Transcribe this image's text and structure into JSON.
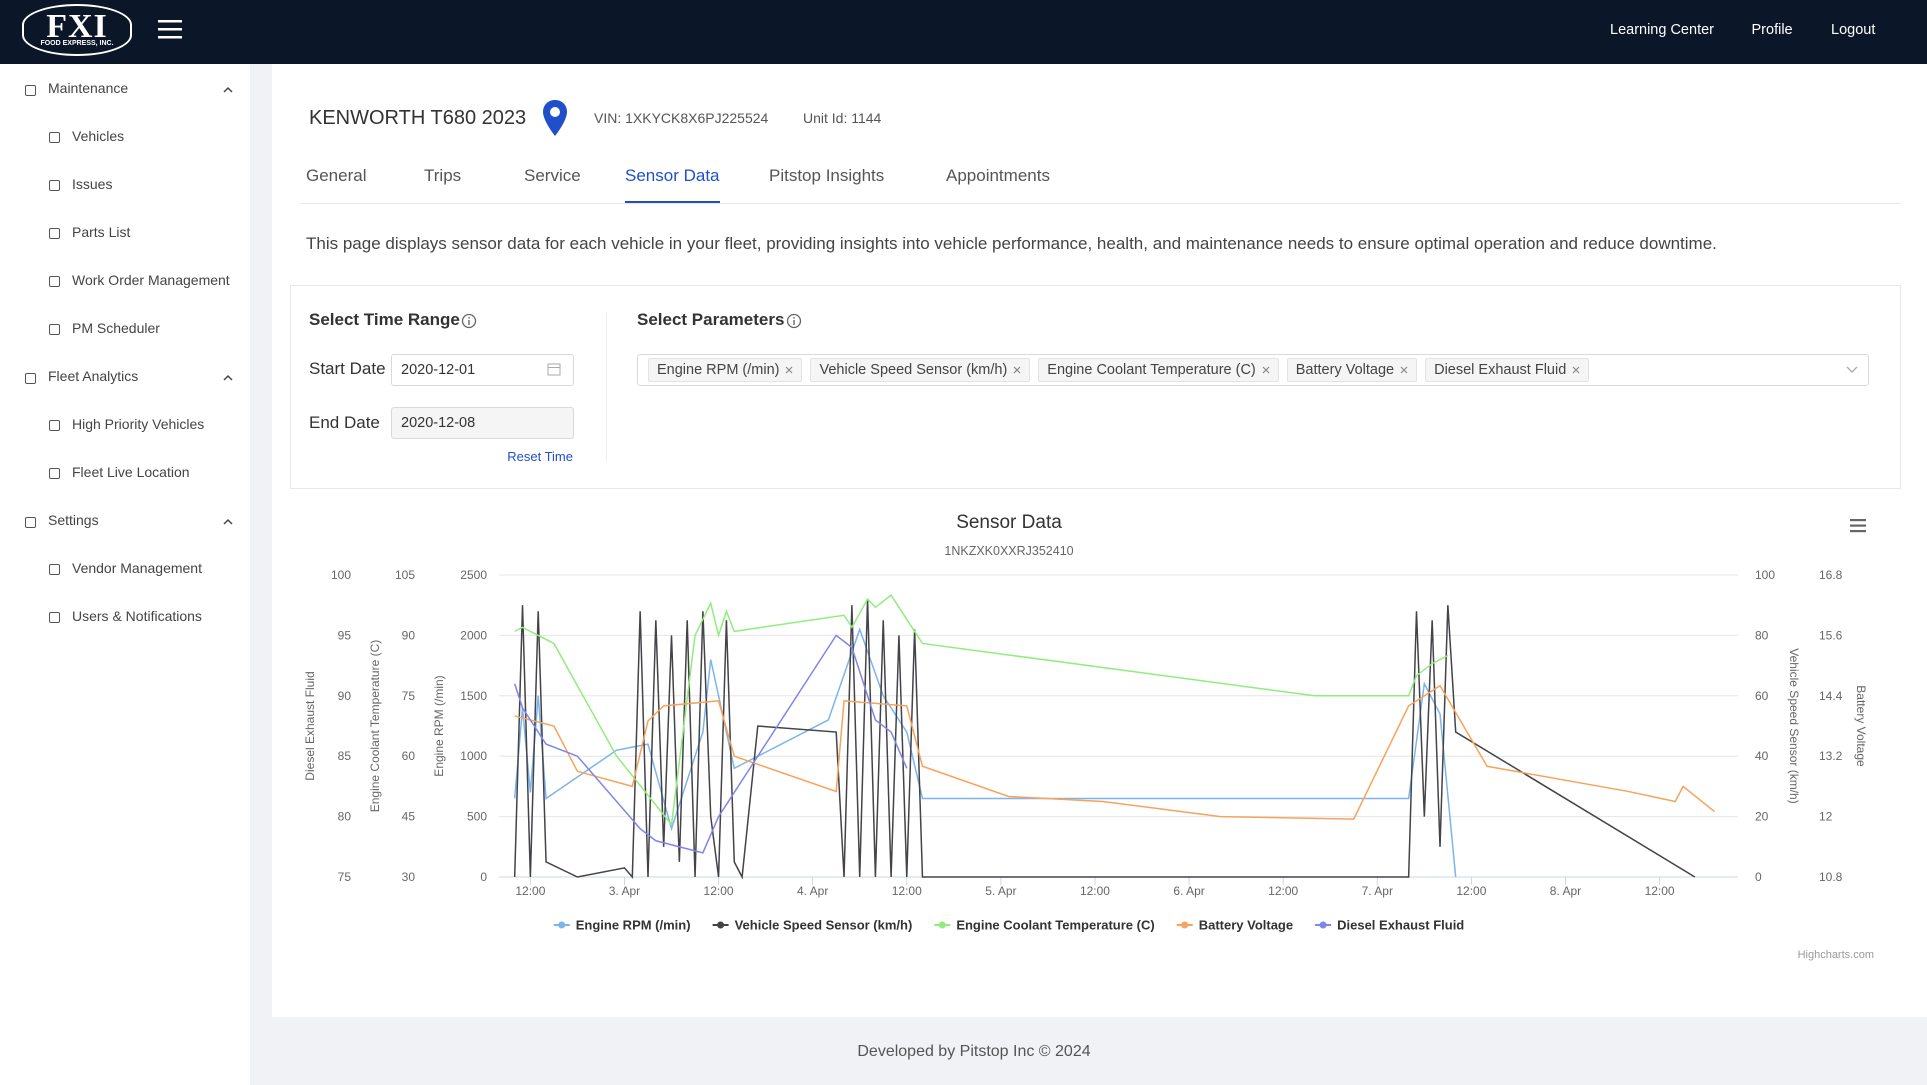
{
  "header": {
    "logo": "FXI",
    "logo_sub": "FOOD EXPRESS, INC.",
    "nav": [
      "Learning Center",
      "Profile",
      "Logout"
    ]
  },
  "sidebar": [
    {
      "label": "Maintenance",
      "items": [
        "Vehicles",
        "Issues",
        "Parts List",
        "Work Order Management",
        "PM Scheduler"
      ]
    },
    {
      "label": "Fleet Analytics",
      "items": [
        "High Priority Vehicles",
        "Fleet Live Location"
      ]
    },
    {
      "label": "Settings",
      "items": [
        "Vendor Management",
        "Users & Notifications"
      ]
    }
  ],
  "vehicle": {
    "name": "KENWORTH T680 2023",
    "vin": "VIN: 1XKYCK8X6PJ225524",
    "unit": "Unit Id: 1144"
  },
  "tabs": [
    "General",
    "Trips",
    "Service",
    "Sensor Data",
    "Pitstop Insights",
    "Appointments"
  ],
  "active_tab": 3,
  "description": "This page displays sensor data for each vehicle in your fleet, providing insights into vehicle performance, health, and maintenance needs to ensure optimal operation and reduce downtime.",
  "time_range": {
    "title": "Select Time Range",
    "start_label": "Start Date",
    "start_value": "2020-12-01",
    "end_label": "End Date",
    "end_value": "2020-12-08",
    "reset": "Reset Time"
  },
  "parameters": {
    "title": "Select Parameters",
    "chips": [
      "Engine RPM (/min)",
      "Vehicle Speed Sensor (km/h)",
      "Engine Coolant Temperature (C)",
      "Battery Voltage",
      "Diesel Exhaust Fluid"
    ]
  },
  "chart_data": {
    "type": "line",
    "title": "Sensor Data",
    "subtitle": "1NKZXK0XXRJ352410",
    "credit": "Highcharts.com",
    "grid": true,
    "xlim": [
      8,
      166
    ],
    "xticks": [
      {
        "value": 12,
        "label": "12:00"
      },
      {
        "value": 24,
        "label": "3. Apr"
      },
      {
        "value": 36,
        "label": "12:00"
      },
      {
        "value": 48,
        "label": "4. Apr"
      },
      {
        "value": 60,
        "label": "12:00"
      },
      {
        "value": 72,
        "label": "5. Apr"
      },
      {
        "value": 84,
        "label": "12:00"
      },
      {
        "value": 96,
        "label": "6. Apr"
      },
      {
        "value": 108,
        "label": "12:00"
      },
      {
        "value": 120,
        "label": "7. Apr"
      },
      {
        "value": 132,
        "label": "12:00"
      },
      {
        "value": 144,
        "label": "8. Apr"
      },
      {
        "value": 156,
        "label": "12:00"
      }
    ],
    "axes": [
      {
        "title": "Engine RPM (/min)",
        "side": "left",
        "lim": [
          0,
          2500
        ],
        "ticks": [
          0,
          500,
          1000,
          1500,
          2000,
          2500
        ]
      },
      {
        "title": "Vehicle Speed Sensor (km/h)",
        "side": "right",
        "lim": [
          0,
          100
        ],
        "ticks": [
          0,
          20,
          40,
          60,
          80,
          100
        ]
      },
      {
        "title": "Engine Coolant Temperature (C)",
        "side": "left",
        "lim": [
          30,
          105
        ],
        "ticks": [
          30,
          45,
          60,
          75,
          90,
          105
        ]
      },
      {
        "title": "Battery Voltage",
        "side": "right",
        "lim": [
          10.8,
          16.8
        ],
        "ticks": [
          10.8,
          12,
          13.2,
          14.4,
          15.6,
          16.8
        ]
      },
      {
        "title": "Diesel Exhaust Fluid",
        "side": "left",
        "lim": [
          75,
          100
        ],
        "ticks": [
          75,
          80,
          85,
          90,
          95,
          100
        ]
      }
    ],
    "series": [
      {
        "name": "Engine RPM (/min)",
        "color": "#7cb5ec",
        "axis": 0,
        "x": [
          10,
          11,
          12,
          13,
          14,
          23,
          27,
          30,
          34,
          35,
          38,
          50,
          54,
          57,
          60,
          62,
          124,
          126,
          128,
          130
        ],
        "values": [
          650,
          1400,
          700,
          1500,
          650,
          1050,
          1100,
          400,
          1200,
          1800,
          900,
          1300,
          2050,
          1500,
          1200,
          650,
          650,
          1600,
          1350,
          0
        ]
      },
      {
        "name": "Vehicle Speed Sensor (km/h)",
        "color": "#434348",
        "axis": 1,
        "x": [
          10,
          11,
          12,
          13,
          14,
          18,
          24,
          25,
          26,
          27,
          28,
          29,
          30,
          31,
          32,
          33,
          34,
          35,
          36,
          37,
          38,
          39,
          41,
          51,
          52,
          53,
          54,
          55,
          56,
          57,
          58,
          59,
          60,
          61,
          62,
          124,
          125,
          126,
          127,
          128,
          129,
          130,
          160.5
        ],
        "values": [
          0,
          90,
          0,
          88,
          5,
          0,
          3,
          0,
          88,
          0,
          85,
          10,
          80,
          5,
          85,
          0,
          88,
          20,
          0,
          85,
          5,
          0,
          50,
          48,
          0,
          90,
          0,
          92,
          0,
          85,
          0,
          80,
          0,
          82,
          0,
          0,
          88,
          20,
          85,
          10,
          90,
          48,
          0
        ]
      },
      {
        "name": "Engine Coolant Temperature (C)",
        "color": "#90ed7d",
        "axis": 2,
        "x": [
          10,
          11,
          13,
          15,
          23,
          30,
          33,
          35,
          36,
          37,
          38,
          52,
          53,
          55,
          56,
          58,
          60,
          62,
          112,
          124,
          125,
          127,
          129
        ],
        "values": [
          91,
          92,
          90,
          88,
          60,
          43,
          90,
          98,
          90,
          96,
          91,
          95,
          92,
          99,
          97,
          100,
          94,
          88,
          75,
          75,
          80,
          83,
          85
        ]
      },
      {
        "name": "Battery Voltage",
        "color": "#f7a35c",
        "axis": 3,
        "x": [
          10,
          15,
          18,
          25,
          27,
          29,
          36,
          38,
          51,
          52,
          60,
          62,
          73,
          85,
          100,
          117,
          124,
          128,
          134,
          152,
          158,
          159,
          163
        ],
        "values": [
          14,
          13.8,
          12.9,
          12.6,
          13.9,
          14.2,
          14.3,
          13.2,
          12.5,
          14.3,
          14.2,
          13,
          12.4,
          12.3,
          12,
          11.95,
          14.2,
          14.6,
          13,
          12.5,
          12.3,
          12.6,
          12.1
        ]
      },
      {
        "name": "Diesel Exhaust Fluid",
        "color": "#8085e9",
        "axis": 4,
        "x": [
          10,
          11,
          14,
          18,
          26,
          28,
          34,
          36,
          51,
          53,
          56,
          58,
          60
        ],
        "values": [
          91,
          89,
          86,
          85,
          79,
          78,
          77,
          80,
          95,
          94,
          88,
          87,
          84
        ]
      }
    ]
  },
  "footer": "Developed by Pitstop Inc © 2024"
}
